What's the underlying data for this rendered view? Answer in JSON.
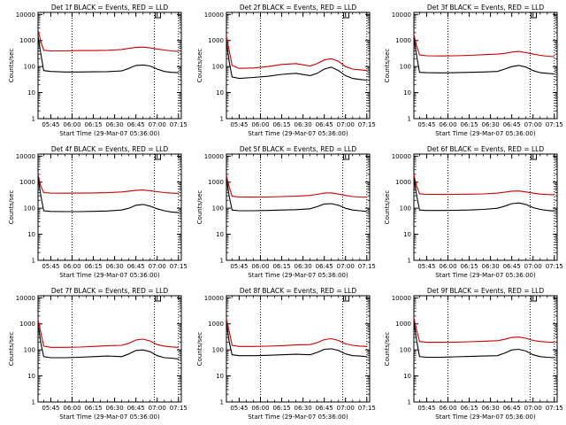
{
  "figure": {
    "xlabel": "Start Time (29-Mar-07 05:36:00)",
    "ylabel": "Counts/sec"
  },
  "chart_data": [
    {
      "type": "line",
      "panel": "Det 1f",
      "title": "Det 1f BLACK = Events, RED = LLD",
      "xticks": [
        "05:45",
        "06:00",
        "06:15",
        "06:30",
        "06:45",
        "07:00",
        "07:15"
      ],
      "yticks": [
        "1",
        "10",
        "100",
        "1000",
        "10000"
      ],
      "xlim": [
        "05:36",
        "07:17"
      ],
      "ylim": [
        1,
        12000
      ],
      "yscale": "log",
      "x": [
        "05:36",
        "05:38",
        "05:40",
        "05:45",
        "05:55",
        "06:05",
        "06:15",
        "06:25",
        "06:35",
        "06:40",
        "06:45",
        "06:50",
        "06:55",
        "07:00",
        "07:05",
        "07:10",
        "07:15"
      ],
      "series": [
        {
          "color": "#000000",
          "values": [
            1500,
            300,
            70,
            65,
            62,
            62,
            63,
            64,
            68,
            85,
            110,
            115,
            105,
            80,
            65,
            60,
            58
          ]
        },
        {
          "color": "#cc0000",
          "values": [
            2500,
            900,
            420,
            400,
            400,
            410,
            410,
            420,
            450,
            500,
            540,
            560,
            520,
            470,
            430,
            400,
            380
          ]
        }
      ],
      "vlines": [
        "06:00",
        "06:58",
        "07:15"
      ]
    },
    {
      "type": "line",
      "panel": "Det 2f",
      "title": "Det 2f BLACK = Events, RED = LLD",
      "xticks": [
        "05:45",
        "06:00",
        "06:15",
        "06:30",
        "06:45",
        "07:00",
        "07:15"
      ],
      "yticks": [
        "1",
        "10",
        "100",
        "1000",
        "10000"
      ],
      "xlim": [
        "05:36",
        "07:17"
      ],
      "ylim": [
        1,
        12000
      ],
      "yscale": "log",
      "x": [
        "05:36",
        "05:38",
        "05:40",
        "05:45",
        "05:55",
        "06:05",
        "06:15",
        "06:25",
        "06:35",
        "06:40",
        "06:45",
        "06:50",
        "06:55",
        "07:00",
        "07:05",
        "07:10",
        "07:15"
      ],
      "series": [
        {
          "color": "#000000",
          "values": [
            900,
            150,
            40,
            35,
            38,
            42,
            50,
            55,
            45,
            55,
            80,
            95,
            70,
            45,
            35,
            32,
            30
          ]
        },
        {
          "color": "#cc0000",
          "values": [
            1500,
            400,
            110,
            85,
            88,
            100,
            120,
            130,
            105,
            130,
            180,
            200,
            160,
            100,
            80,
            75,
            70
          ]
        }
      ],
      "vlines": [
        "06:00",
        "06:58",
        "07:15"
      ]
    },
    {
      "type": "line",
      "panel": "Det 3f",
      "title": "Det 3f BLACK = Events, RED = LLD",
      "xticks": [
        "05:45",
        "06:00",
        "06:15",
        "06:30",
        "06:45",
        "07:00",
        "07:15"
      ],
      "yticks": [
        "1",
        "10",
        "100",
        "1000",
        "10000"
      ],
      "xlim": [
        "05:36",
        "07:17"
      ],
      "ylim": [
        1,
        12000
      ],
      "yscale": "log",
      "x": [
        "05:36",
        "05:38",
        "05:40",
        "05:45",
        "05:55",
        "06:05",
        "06:15",
        "06:25",
        "06:35",
        "06:40",
        "06:45",
        "06:50",
        "06:55",
        "07:00",
        "07:05",
        "07:10",
        "07:15"
      ],
      "series": [
        {
          "color": "#000000",
          "values": [
            1300,
            250,
            60,
            58,
            57,
            58,
            60,
            62,
            65,
            80,
            100,
            110,
            95,
            70,
            58,
            55,
            52
          ]
        },
        {
          "color": "#cc0000",
          "values": [
            1700,
            600,
            280,
            260,
            255,
            260,
            270,
            285,
            300,
            320,
            360,
            380,
            340,
            300,
            270,
            250,
            240
          ]
        }
      ],
      "vlines": [
        "06:00",
        "06:58",
        "07:15"
      ]
    },
    {
      "type": "line",
      "panel": "Det 4f",
      "title": "Det 4f BLACK = Events, RED = LLD",
      "xticks": [
        "05:45",
        "06:00",
        "06:15",
        "06:30",
        "06:45",
        "07:00",
        "07:15"
      ],
      "yticks": [
        "1",
        "10",
        "100",
        "1000",
        "10000"
      ],
      "xlim": [
        "05:36",
        "07:17"
      ],
      "ylim": [
        1,
        12000
      ],
      "yscale": "log",
      "x": [
        "05:36",
        "05:38",
        "05:40",
        "05:45",
        "05:55",
        "06:05",
        "06:15",
        "06:25",
        "06:35",
        "06:40",
        "06:45",
        "06:50",
        "06:55",
        "07:00",
        "07:05",
        "07:10",
        "07:15"
      ],
      "series": [
        {
          "color": "#000000",
          "values": [
            1600,
            300,
            80,
            75,
            74,
            74,
            76,
            78,
            85,
            100,
            130,
            140,
            120,
            95,
            80,
            72,
            68
          ]
        },
        {
          "color": "#cc0000",
          "values": [
            2000,
            700,
            400,
            380,
            378,
            380,
            385,
            395,
            420,
            450,
            490,
            500,
            470,
            430,
            400,
            380,
            370
          ]
        }
      ],
      "vlines": [
        "06:00",
        "06:58",
        "07:15"
      ]
    },
    {
      "type": "line",
      "panel": "Det 5f",
      "title": "Det 5f BLACK = Events, RED = LLD",
      "xticks": [
        "05:45",
        "06:00",
        "06:15",
        "06:30",
        "06:45",
        "07:00",
        "07:15"
      ],
      "yticks": [
        "1",
        "10",
        "100",
        "1000",
        "10000"
      ],
      "xlim": [
        "05:36",
        "07:17"
      ],
      "ylim": [
        1,
        12000
      ],
      "yscale": "log",
      "x": [
        "05:36",
        "05:38",
        "05:40",
        "05:45",
        "05:55",
        "06:05",
        "06:15",
        "06:25",
        "06:35",
        "06:40",
        "06:45",
        "06:50",
        "06:55",
        "07:00",
        "07:05",
        "07:10",
        "07:15"
      ],
      "series": [
        {
          "color": "#000000",
          "values": [
            1400,
            280,
            85,
            80,
            80,
            82,
            85,
            88,
            95,
            115,
            145,
            150,
            130,
            100,
            85,
            80,
            75
          ]
        },
        {
          "color": "#cc0000",
          "values": [
            1800,
            650,
            290,
            270,
            268,
            270,
            280,
            290,
            310,
            340,
            380,
            390,
            350,
            310,
            280,
            270,
            265
          ]
        }
      ],
      "vlines": [
        "06:00",
        "06:58",
        "07:15"
      ]
    },
    {
      "type": "line",
      "panel": "Det 6f",
      "title": "Det 6f BLACK = Events, RED = LLD",
      "xticks": [
        "05:45",
        "06:00",
        "06:15",
        "06:30",
        "06:45",
        "07:00",
        "07:15"
      ],
      "yticks": [
        "1",
        "10",
        "100",
        "1000",
        "10000"
      ],
      "xlim": [
        "05:36",
        "07:17"
      ],
      "ylim": [
        1,
        12000
      ],
      "yscale": "log",
      "x": [
        "05:36",
        "05:38",
        "05:40",
        "05:45",
        "05:55",
        "06:05",
        "06:15",
        "06:25",
        "06:35",
        "06:40",
        "06:45",
        "06:50",
        "06:55",
        "07:00",
        "07:05",
        "07:10",
        "07:15"
      ],
      "series": [
        {
          "color": "#000000",
          "values": [
            1500,
            300,
            85,
            82,
            82,
            83,
            85,
            90,
            100,
            120,
            150,
            160,
            140,
            105,
            90,
            82,
            78
          ]
        },
        {
          "color": "#cc0000",
          "values": [
            1900,
            700,
            360,
            340,
            338,
            340,
            345,
            355,
            380,
            410,
            450,
            460,
            420,
            380,
            350,
            335,
            330
          ]
        }
      ],
      "vlines": [
        "06:00",
        "06:58",
        "07:15"
      ]
    },
    {
      "type": "line",
      "panel": "Det 7f",
      "title": "Det 7f BLACK = Events, RED = LLD",
      "xticks": [
        "05:45",
        "06:00",
        "06:15",
        "06:30",
        "06:45",
        "07:00",
        "07:15"
      ],
      "yticks": [
        "1",
        "10",
        "100",
        "1000",
        "10000"
      ],
      "xlim": [
        "05:36",
        "07:17"
      ],
      "ylim": [
        1,
        12000
      ],
      "yscale": "log",
      "x": [
        "05:36",
        "05:38",
        "05:40",
        "05:45",
        "05:55",
        "06:05",
        "06:15",
        "06:25",
        "06:35",
        "06:40",
        "06:45",
        "06:50",
        "06:55",
        "07:00",
        "07:05",
        "07:10",
        "07:15"
      ],
      "series": [
        {
          "color": "#000000",
          "values": [
            1000,
            180,
            55,
            50,
            50,
            52,
            55,
            58,
            55,
            70,
            95,
            100,
            85,
            60,
            50,
            48,
            45
          ]
        },
        {
          "color": "#cc0000",
          "values": [
            1500,
            450,
            140,
            125,
            125,
            128,
            135,
            145,
            150,
            180,
            240,
            260,
            220,
            160,
            140,
            130,
            125
          ]
        }
      ],
      "vlines": [
        "06:00",
        "06:58",
        "07:15"
      ]
    },
    {
      "type": "line",
      "panel": "Det 8f",
      "title": "Det 8f BLACK = Events, RED = LLD",
      "xticks": [
        "05:45",
        "06:00",
        "06:15",
        "06:30",
        "06:45",
        "07:00",
        "07:15"
      ],
      "yticks": [
        "1",
        "10",
        "100",
        "1000",
        "10000"
      ],
      "xlim": [
        "05:36",
        "07:17"
      ],
      "ylim": [
        1,
        12000
      ],
      "yscale": "log",
      "x": [
        "05:36",
        "05:38",
        "05:40",
        "05:45",
        "05:55",
        "06:05",
        "06:15",
        "06:25",
        "06:35",
        "06:40",
        "06:45",
        "06:50",
        "06:55",
        "07:00",
        "07:05",
        "07:10",
        "07:15"
      ],
      "series": [
        {
          "color": "#000000",
          "values": [
            1100,
            200,
            65,
            60,
            60,
            62,
            65,
            68,
            65,
            80,
            105,
            110,
            95,
            70,
            60,
            58,
            55
          ]
        },
        {
          "color": "#cc0000",
          "values": [
            1600,
            500,
            150,
            135,
            135,
            138,
            145,
            155,
            160,
            190,
            250,
            270,
            230,
            170,
            150,
            140,
            135
          ]
        }
      ],
      "vlines": [
        "06:00",
        "06:58",
        "07:15"
      ]
    },
    {
      "type": "line",
      "panel": "Det 9f",
      "title": "Det 9f BLACK = Events, RED = LLD",
      "xticks": [
        "05:45",
        "06:00",
        "06:15",
        "06:30",
        "06:45",
        "07:00",
        "07:15"
      ],
      "yticks": [
        "1",
        "10",
        "100",
        "1000",
        "10000"
      ],
      "xlim": [
        "05:36",
        "07:17"
      ],
      "ylim": [
        1,
        12000
      ],
      "yscale": "log",
      "x": [
        "05:36",
        "05:38",
        "05:40",
        "05:45",
        "05:55",
        "06:05",
        "06:15",
        "06:25",
        "06:35",
        "06:40",
        "06:45",
        "06:50",
        "06:55",
        "07:00",
        "07:05",
        "07:10",
        "07:15"
      ],
      "series": [
        {
          "color": "#000000",
          "values": [
            1200,
            220,
            55,
            52,
            52,
            54,
            56,
            58,
            60,
            75,
            100,
            105,
            90,
            65,
            55,
            52,
            50
          ]
        },
        {
          "color": "#cc0000",
          "values": [
            1700,
            550,
            210,
            195,
            195,
            198,
            205,
            215,
            225,
            255,
            300,
            310,
            280,
            230,
            210,
            200,
            195
          ]
        }
      ],
      "vlines": [
        "06:00",
        "06:58",
        "07:15"
      ]
    }
  ]
}
